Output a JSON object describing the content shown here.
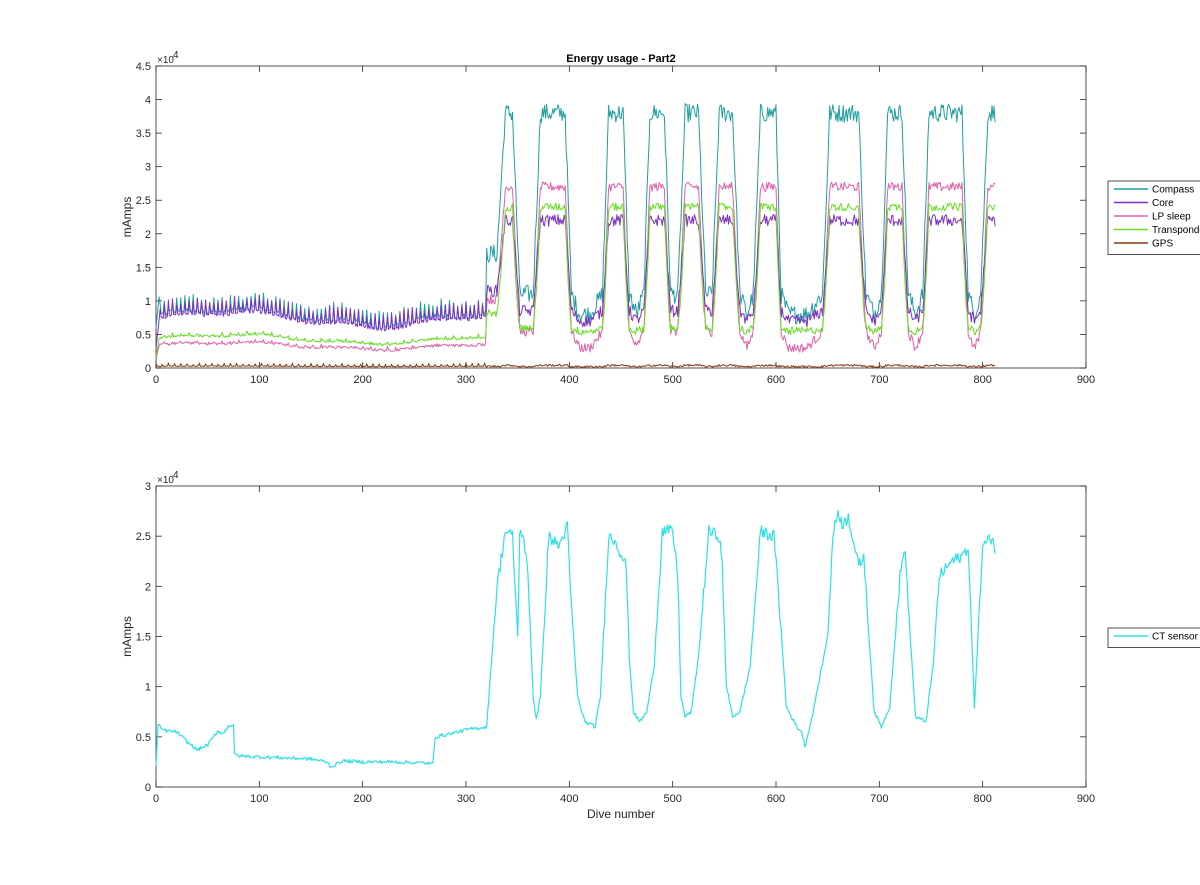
{
  "chart_data": [
    {
      "type": "line",
      "title": "Energy usage - Part2",
      "xlabel": "",
      "ylabel": "mAmps",
      "xlim": [
        0,
        900
      ],
      "ylim": [
        0,
        45000
      ],
      "xticks": [
        0,
        100,
        200,
        300,
        400,
        500,
        600,
        700,
        800,
        900
      ],
      "yticks": [
        0,
        5000,
        10000,
        15000,
        20000,
        25000,
        30000,
        35000,
        40000,
        45000
      ],
      "xtick_labels": [
        "0",
        "100",
        "200",
        "300",
        "400",
        "500",
        "600",
        "700",
        "800",
        "900"
      ],
      "ytick_labels": [
        "0",
        "0.5",
        "1",
        "1.5",
        "2",
        "2.5",
        "3",
        "3.5",
        "4",
        "4.5"
      ],
      "y_exponent_label": "×10",
      "y_exponent_power": "4",
      "grid": false,
      "legend_position": "outside-right",
      "profile": {
        "x": [
          0,
          20,
          40,
          60,
          80,
          100,
          150,
          200,
          250,
          300,
          310,
          320,
          330,
          338,
          345,
          352,
          358,
          365,
          372,
          380,
          388,
          396,
          402,
          410,
          420,
          432,
          438,
          445,
          452,
          458,
          465,
          472,
          478,
          485,
          492,
          498,
          505,
          512,
          518,
          525,
          532,
          538,
          545,
          552,
          558,
          565,
          572,
          578,
          585,
          592,
          600,
          605,
          612,
          620,
          630,
          645,
          652,
          660,
          670,
          680,
          687,
          695,
          702,
          708,
          715,
          722,
          728,
          735,
          742,
          748,
          755,
          762,
          770,
          780,
          786,
          792,
          798,
          805,
          812
        ],
        "h": [
          0.3,
          0.3,
          0.3,
          0.3,
          0.3,
          0.3,
          0.3,
          0.3,
          0.3,
          0.3,
          0.3,
          0.3,
          0.3,
          1,
          1,
          0.1,
          0.1,
          0.1,
          1,
          1,
          1,
          1,
          0.1,
          0,
          0,
          0.1,
          1,
          1,
          1,
          0.1,
          0,
          0.1,
          1,
          1,
          1,
          0.1,
          0.1,
          1,
          1,
          1,
          0.1,
          0.1,
          1,
          1,
          1,
          0.1,
          0,
          0.1,
          1,
          1,
          1,
          0.1,
          0,
          0,
          0,
          0.1,
          1,
          1,
          1,
          1,
          0.1,
          0,
          0.1,
          1,
          1,
          1,
          0.1,
          0,
          0.1,
          1,
          1,
          1,
          1,
          1,
          0.1,
          0,
          0.1,
          1,
          1
        ]
      },
      "series": [
        {
          "name": "Compass",
          "color": "#1f9e9e",
          "low": 8000,
          "high": 38000,
          "noise": 1400,
          "spike": 2000,
          "spike_period": 4,
          "early_until": 320
        },
        {
          "name": "Core",
          "color": "#7e2fc4",
          "low": 7000,
          "high": 22000,
          "noise": 900,
          "spike": 2200,
          "spike_period": 4,
          "early_until": 320
        },
        {
          "name": "LP sleep",
          "color": "#e060a8",
          "low": 3000,
          "high": 27000,
          "noise": 700,
          "spike": 300,
          "spike_period": 8,
          "early_until": 320
        },
        {
          "name": "Transponder",
          "color": "#66dd22",
          "low": 5500,
          "high": 24000,
          "noise": 600,
          "spike": 400,
          "spike_period": 8,
          "early_until": 320
        },
        {
          "name": "GPS",
          "color": "#8a3a10",
          "low": 200,
          "high": 400,
          "noise": 150,
          "spike": 400,
          "spike_period": 6,
          "early_until": 320
        }
      ]
    },
    {
      "type": "line",
      "title": "",
      "xlabel": "Dive number",
      "ylabel": "mAmps",
      "xlim": [
        0,
        900
      ],
      "ylim": [
        0,
        30000
      ],
      "xticks": [
        0,
        100,
        200,
        300,
        400,
        500,
        600,
        700,
        800,
        900
      ],
      "yticks": [
        0,
        5000,
        10000,
        15000,
        20000,
        25000,
        30000
      ],
      "xtick_labels": [
        "0",
        "100",
        "200",
        "300",
        "400",
        "500",
        "600",
        "700",
        "800",
        "900"
      ],
      "ytick_labels": [
        "0",
        "0.5",
        "1",
        "1.5",
        "2",
        "2.5",
        "3"
      ],
      "y_exponent_label": "×10",
      "y_exponent_power": "4",
      "grid": false,
      "legend_position": "outside-right",
      "series": [
        {
          "name": "CT sensor",
          "color": "#2ee0e6",
          "x": [
            0,
            2,
            5,
            10,
            20,
            30,
            40,
            50,
            60,
            65,
            70,
            75,
            76,
            80,
            100,
            150,
            165,
            170,
            180,
            200,
            230,
            260,
            268,
            270,
            280,
            300,
            320,
            330,
            338,
            345,
            350,
            352,
            355,
            360,
            365,
            368,
            372,
            380,
            390,
            398,
            402,
            408,
            415,
            425,
            430,
            438,
            445,
            455,
            458,
            462,
            468,
            475,
            482,
            490,
            500,
            505,
            508,
            512,
            518,
            525,
            535,
            545,
            548,
            552,
            558,
            565,
            575,
            585,
            598,
            602,
            610,
            620,
            625,
            628,
            635,
            650,
            655,
            660,
            665,
            670,
            675,
            680,
            685,
            690,
            695,
            702,
            710,
            720,
            725,
            728,
            735,
            745,
            752,
            758,
            770,
            780,
            786,
            792,
            800,
            810,
            812
          ],
          "y": [
            2000,
            6200,
            5800,
            5600,
            5500,
            4500,
            3700,
            4200,
            5600,
            5300,
            6100,
            6200,
            3200,
            3100,
            3000,
            2800,
            2500,
            2000,
            2600,
            2500,
            2500,
            2400,
            2300,
            5000,
            5200,
            5700,
            6000,
            20000,
            25500,
            25000,
            15000,
            25000,
            25500,
            21000,
            9000,
            6800,
            9000,
            25000,
            24000,
            26000,
            18000,
            9000,
            6500,
            6000,
            9000,
            25000,
            24500,
            22000,
            13000,
            7500,
            6500,
            7500,
            12000,
            25500,
            25500,
            21000,
            9000,
            7000,
            7500,
            13000,
            25500,
            25000,
            22000,
            10000,
            7000,
            7500,
            12000,
            25500,
            25000,
            20000,
            8000,
            6000,
            5500,
            4000,
            7000,
            15000,
            25000,
            27500,
            26000,
            27000,
            24500,
            22000,
            23000,
            15000,
            7500,
            6000,
            8000,
            21000,
            24000,
            18000,
            7000,
            6500,
            12000,
            21000,
            22500,
            23000,
            24000,
            8000,
            24000,
            25000,
            23000
          ]
        }
      ]
    }
  ]
}
